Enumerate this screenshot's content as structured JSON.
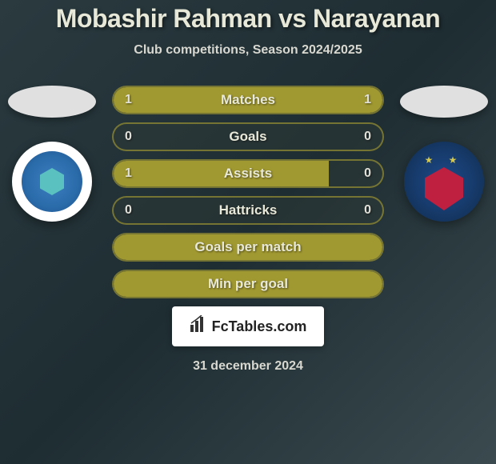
{
  "title": "Mobashir Rahman vs Narayanan",
  "subtitle": "Club competitions, Season 2024/2025",
  "date": "31 december 2024",
  "logo": {
    "name": "FcTables.com"
  },
  "colors": {
    "bar_fill": "#a09830",
    "bar_border": "rgba(170, 160, 50, 0.6)",
    "text": "#e8e8d8",
    "background_gradient": [
      "#2a3a3f",
      "#1e2d32",
      "#3a4a4f"
    ]
  },
  "players": {
    "left": {
      "name": "Mobashir Rahman",
      "club_primary": "#2a6baa",
      "club_accent": "#5ac0c0"
    },
    "right": {
      "name": "Narayanan",
      "club_primary": "#163a6a",
      "club_accent": "#c02040"
    }
  },
  "stats": [
    {
      "label": "Matches",
      "left_val": "1",
      "right_val": "1",
      "left_pct": 50,
      "right_pct": 50
    },
    {
      "label": "Goals",
      "left_val": "0",
      "right_val": "0",
      "left_pct": 0,
      "right_pct": 0
    },
    {
      "label": "Assists",
      "left_val": "1",
      "right_val": "0",
      "left_pct": 80,
      "right_pct": 0
    },
    {
      "label": "Hattricks",
      "left_val": "0",
      "right_val": "0",
      "left_pct": 0,
      "right_pct": 0
    },
    {
      "label": "Goals per match",
      "left_val": "",
      "right_val": "",
      "left_pct": 100,
      "right_pct": 0,
      "full": true
    },
    {
      "label": "Min per goal",
      "left_val": "",
      "right_val": "",
      "left_pct": 100,
      "right_pct": 0,
      "full": true
    }
  ]
}
